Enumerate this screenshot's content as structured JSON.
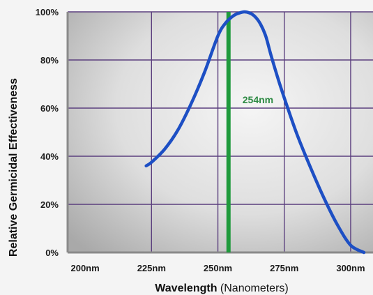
{
  "chart_data": {
    "type": "line",
    "title": "",
    "xlabel": "Wavelength",
    "xlabel_suffix": "(Nanometers)",
    "ylabel": "Relative Germicidal Effectiveness",
    "x_ticks": [
      200,
      225,
      250,
      275,
      300
    ],
    "x_tick_labels": [
      "200nm",
      "225nm",
      "250nm",
      "275nm",
      "300nm"
    ],
    "y_ticks": [
      0,
      20,
      40,
      60,
      80,
      100
    ],
    "y_tick_labels": [
      "0%",
      "20%",
      "40%",
      "60%",
      "80%",
      "100%"
    ],
    "xlim": [
      190,
      305
    ],
    "ylim": [
      0,
      100
    ],
    "grid": true,
    "series": [
      {
        "color": "#1d4fc4",
        "x": [
          223,
          225,
          230,
          235,
          240,
          245,
          250,
          253,
          256,
          258,
          260,
          262,
          264,
          266,
          268,
          270,
          273,
          276,
          280,
          285,
          290,
          295,
          300,
          305
        ],
        "y": [
          36,
          37.5,
          43,
          51,
          62,
          75,
          90,
          95.5,
          98.5,
          99.5,
          100,
          99.5,
          98,
          95,
          90,
          82,
          71,
          61,
          48.5,
          35,
          22.5,
          11.5,
          3,
          0
        ]
      }
    ],
    "annotations": [
      {
        "type": "vertical-line",
        "x": 254,
        "label": "254nm",
        "color": "#1f9a3c",
        "label_color": "#2e8a44"
      }
    ],
    "grid_color": "#5b3f7e"
  }
}
